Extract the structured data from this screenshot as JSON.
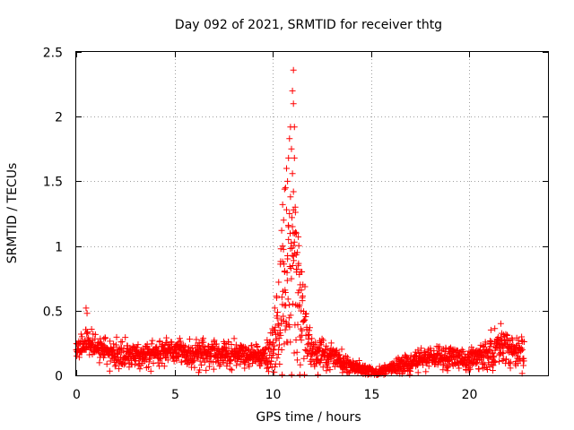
{
  "chart_data": {
    "type": "scatter",
    "title": "Day 092 of 2021, SRMTID for receiver thtg",
    "xlabel": "GPS time / hours",
    "ylabel": "SRMTID / TECUs",
    "xlim": [
      0,
      24
    ],
    "ylim": [
      0,
      2.5
    ],
    "x_ticks": [
      0,
      5,
      10,
      15,
      20
    ],
    "y_ticks": [
      0,
      0.5,
      1,
      1.5,
      2,
      2.5
    ],
    "x_tick_labels": [
      "0",
      "5",
      "10",
      "15",
      "20"
    ],
    "y_tick_labels": [
      "0",
      "0.5",
      "1",
      "1.5",
      "2",
      "2.5"
    ],
    "grid": true,
    "series": [
      {
        "name": "SRMTID",
        "color": "#ff0000",
        "marker": "plus",
        "baseline_profile": [
          [
            0.0,
            0.2
          ],
          [
            0.5,
            0.27
          ],
          [
            1.0,
            0.22
          ],
          [
            2.0,
            0.17
          ],
          [
            3.0,
            0.16
          ],
          [
            4.0,
            0.17
          ],
          [
            5.0,
            0.2
          ],
          [
            6.0,
            0.16
          ],
          [
            7.0,
            0.17
          ],
          [
            8.0,
            0.18
          ],
          [
            9.0,
            0.16
          ],
          [
            9.6,
            0.15
          ],
          [
            10.0,
            0.25
          ],
          [
            10.4,
            0.4
          ],
          [
            10.8,
            0.6
          ],
          [
            11.0,
            0.9
          ],
          [
            11.3,
            0.6
          ],
          [
            11.6,
            0.35
          ],
          [
            12.0,
            0.18
          ],
          [
            13.0,
            0.15
          ],
          [
            14.0,
            0.07
          ],
          [
            15.0,
            0.03
          ],
          [
            15.3,
            0.02
          ],
          [
            16.0,
            0.06
          ],
          [
            17.0,
            0.09
          ],
          [
            18.0,
            0.15
          ],
          [
            19.0,
            0.14
          ],
          [
            20.0,
            0.12
          ],
          [
            21.0,
            0.17
          ],
          [
            21.5,
            0.23
          ],
          [
            22.0,
            0.2
          ],
          [
            22.8,
            0.18
          ]
        ],
        "noise_profile": [
          [
            0.0,
            0.05
          ],
          [
            9.6,
            0.05
          ],
          [
            10.0,
            0.09
          ],
          [
            10.5,
            0.25
          ],
          [
            11.0,
            0.5
          ],
          [
            11.5,
            0.2
          ],
          [
            12.0,
            0.06
          ],
          [
            13.5,
            0.04
          ],
          [
            15.0,
            0.015
          ],
          [
            16.5,
            0.03
          ],
          [
            18.0,
            0.04
          ],
          [
            20.5,
            0.04
          ],
          [
            21.0,
            0.07
          ],
          [
            22.8,
            0.06
          ]
        ],
        "spacing_hours": 0.013,
        "x_range": [
          0.0,
          22.8
        ],
        "peak_points": [
          [
            11.05,
            2.36
          ],
          [
            11.0,
            2.2
          ],
          [
            11.05,
            2.1
          ],
          [
            10.9,
            1.92
          ],
          [
            11.1,
            1.92
          ],
          [
            10.85,
            1.83
          ],
          [
            10.95,
            1.75
          ],
          [
            10.8,
            1.68
          ],
          [
            11.1,
            1.68
          ],
          [
            10.7,
            1.6
          ],
          [
            11.0,
            1.56
          ],
          [
            10.75,
            1.5
          ],
          [
            10.65,
            1.45
          ],
          [
            10.6,
            1.44
          ],
          [
            11.05,
            1.42
          ],
          [
            10.9,
            1.38
          ],
          [
            10.5,
            1.32
          ],
          [
            10.7,
            1.28
          ],
          [
            10.85,
            1.25
          ],
          [
            11.15,
            1.26
          ],
          [
            10.55,
            1.2
          ],
          [
            11.0,
            1.15
          ],
          [
            10.45,
            1.12
          ],
          [
            11.2,
            1.1
          ],
          [
            10.8,
            1.05
          ],
          [
            11.1,
            1.03
          ],
          [
            10.5,
            1.0
          ],
          [
            10.9,
            0.98
          ],
          [
            11.25,
            0.95
          ],
          [
            11.05,
            0.92
          ],
          [
            10.75,
            0.9
          ],
          [
            10.4,
            0.88
          ],
          [
            11.3,
            0.85
          ],
          [
            11.2,
            0.82
          ],
          [
            10.6,
            0.8
          ],
          [
            11.35,
            0.78
          ],
          [
            10.3,
            0.72
          ],
          [
            11.4,
            0.7
          ],
          [
            11.45,
            0.66
          ],
          [
            10.2,
            0.6
          ],
          [
            11.5,
            0.6
          ],
          [
            10.1,
            0.52
          ],
          [
            0.5,
            0.52
          ],
          [
            0.55,
            0.48
          ],
          [
            21.6,
            0.4
          ]
        ]
      }
    ]
  }
}
